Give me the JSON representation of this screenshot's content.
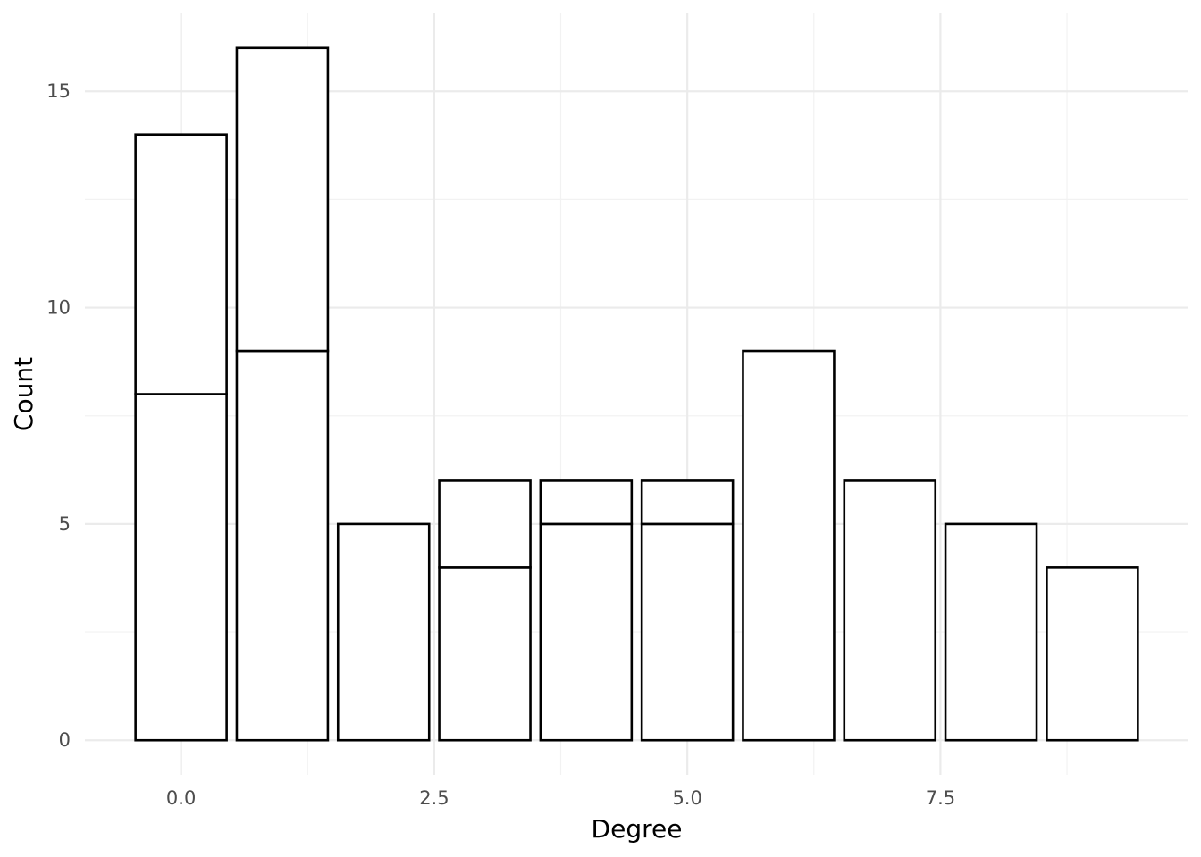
{
  "chart_data": {
    "type": "bar",
    "title": "",
    "xlabel": "Degree",
    "ylabel": "Count",
    "x": [
      0,
      1,
      2,
      3,
      4,
      5,
      6,
      7,
      8,
      9
    ],
    "series": [
      {
        "values": [
          8,
          9,
          5,
          4,
          5,
          5,
          9,
          6,
          5,
          4
        ]
      },
      {
        "values": [
          6,
          7,
          0,
          2,
          1,
          1,
          0,
          0,
          0,
          0
        ]
      }
    ],
    "stacked": true,
    "bar_fill": "#ffffff",
    "bar_outline": "#000000",
    "xlim": [
      -0.95,
      9.95
    ],
    "ylim": [
      -0.8,
      16.8
    ],
    "x_ticks": [
      0,
      2.5,
      5,
      7.5
    ],
    "x_tick_labels": [
      "0.0",
      "2.5",
      "5.0",
      "7.5"
    ],
    "y_ticks": [
      0,
      5,
      10,
      15
    ],
    "y_tick_labels": [
      "0",
      "5",
      "10",
      "15"
    ],
    "grid": true,
    "legend": "none"
  }
}
